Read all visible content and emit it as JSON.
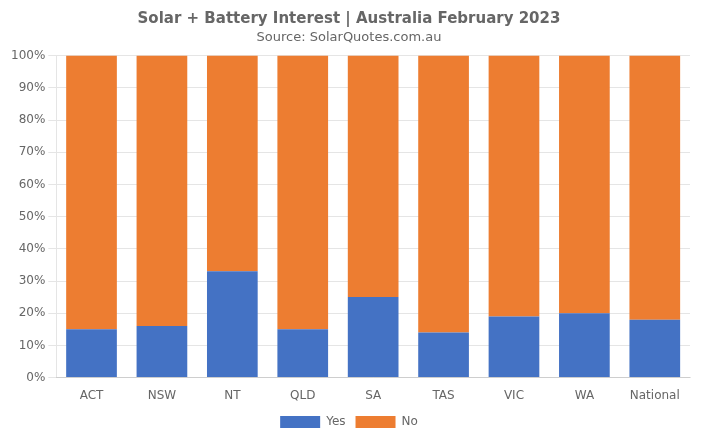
{
  "chart_data": {
    "type": "bar",
    "title": "Solar + Battery Interest | Australia February 2023",
    "subtitle": "Source: SolarQuotes.com.au",
    "categories": [
      "ACT",
      "NSW",
      "NT",
      "QLD",
      "SA",
      "TAS",
      "VIC",
      "WA",
      "National"
    ],
    "series": [
      {
        "name": "Yes",
        "color": "#4472C4",
        "values": [
          15,
          16,
          33,
          15,
          25,
          14,
          19,
          20,
          18
        ]
      },
      {
        "name": "No",
        "color": "#ED7D31",
        "values": [
          85,
          84,
          67,
          85,
          75,
          86,
          81,
          80,
          82
        ]
      }
    ],
    "stacked": true,
    "ylim": [
      0,
      100
    ],
    "yticks": [
      {
        "value": 0,
        "label": "0%"
      },
      {
        "value": 10,
        "label": "10%"
      },
      {
        "value": 20,
        "label": "20%"
      },
      {
        "value": 30,
        "label": "30%"
      },
      {
        "value": 40,
        "label": "40%"
      },
      {
        "value": 50,
        "label": "50%"
      },
      {
        "value": 60,
        "label": "60%"
      },
      {
        "value": 70,
        "label": "70%"
      },
      {
        "value": 80,
        "label": "80%"
      },
      {
        "value": 90,
        "label": "90%"
      },
      {
        "value": 100,
        "label": "100%"
      }
    ],
    "grid": true,
    "legend": "bottom"
  }
}
